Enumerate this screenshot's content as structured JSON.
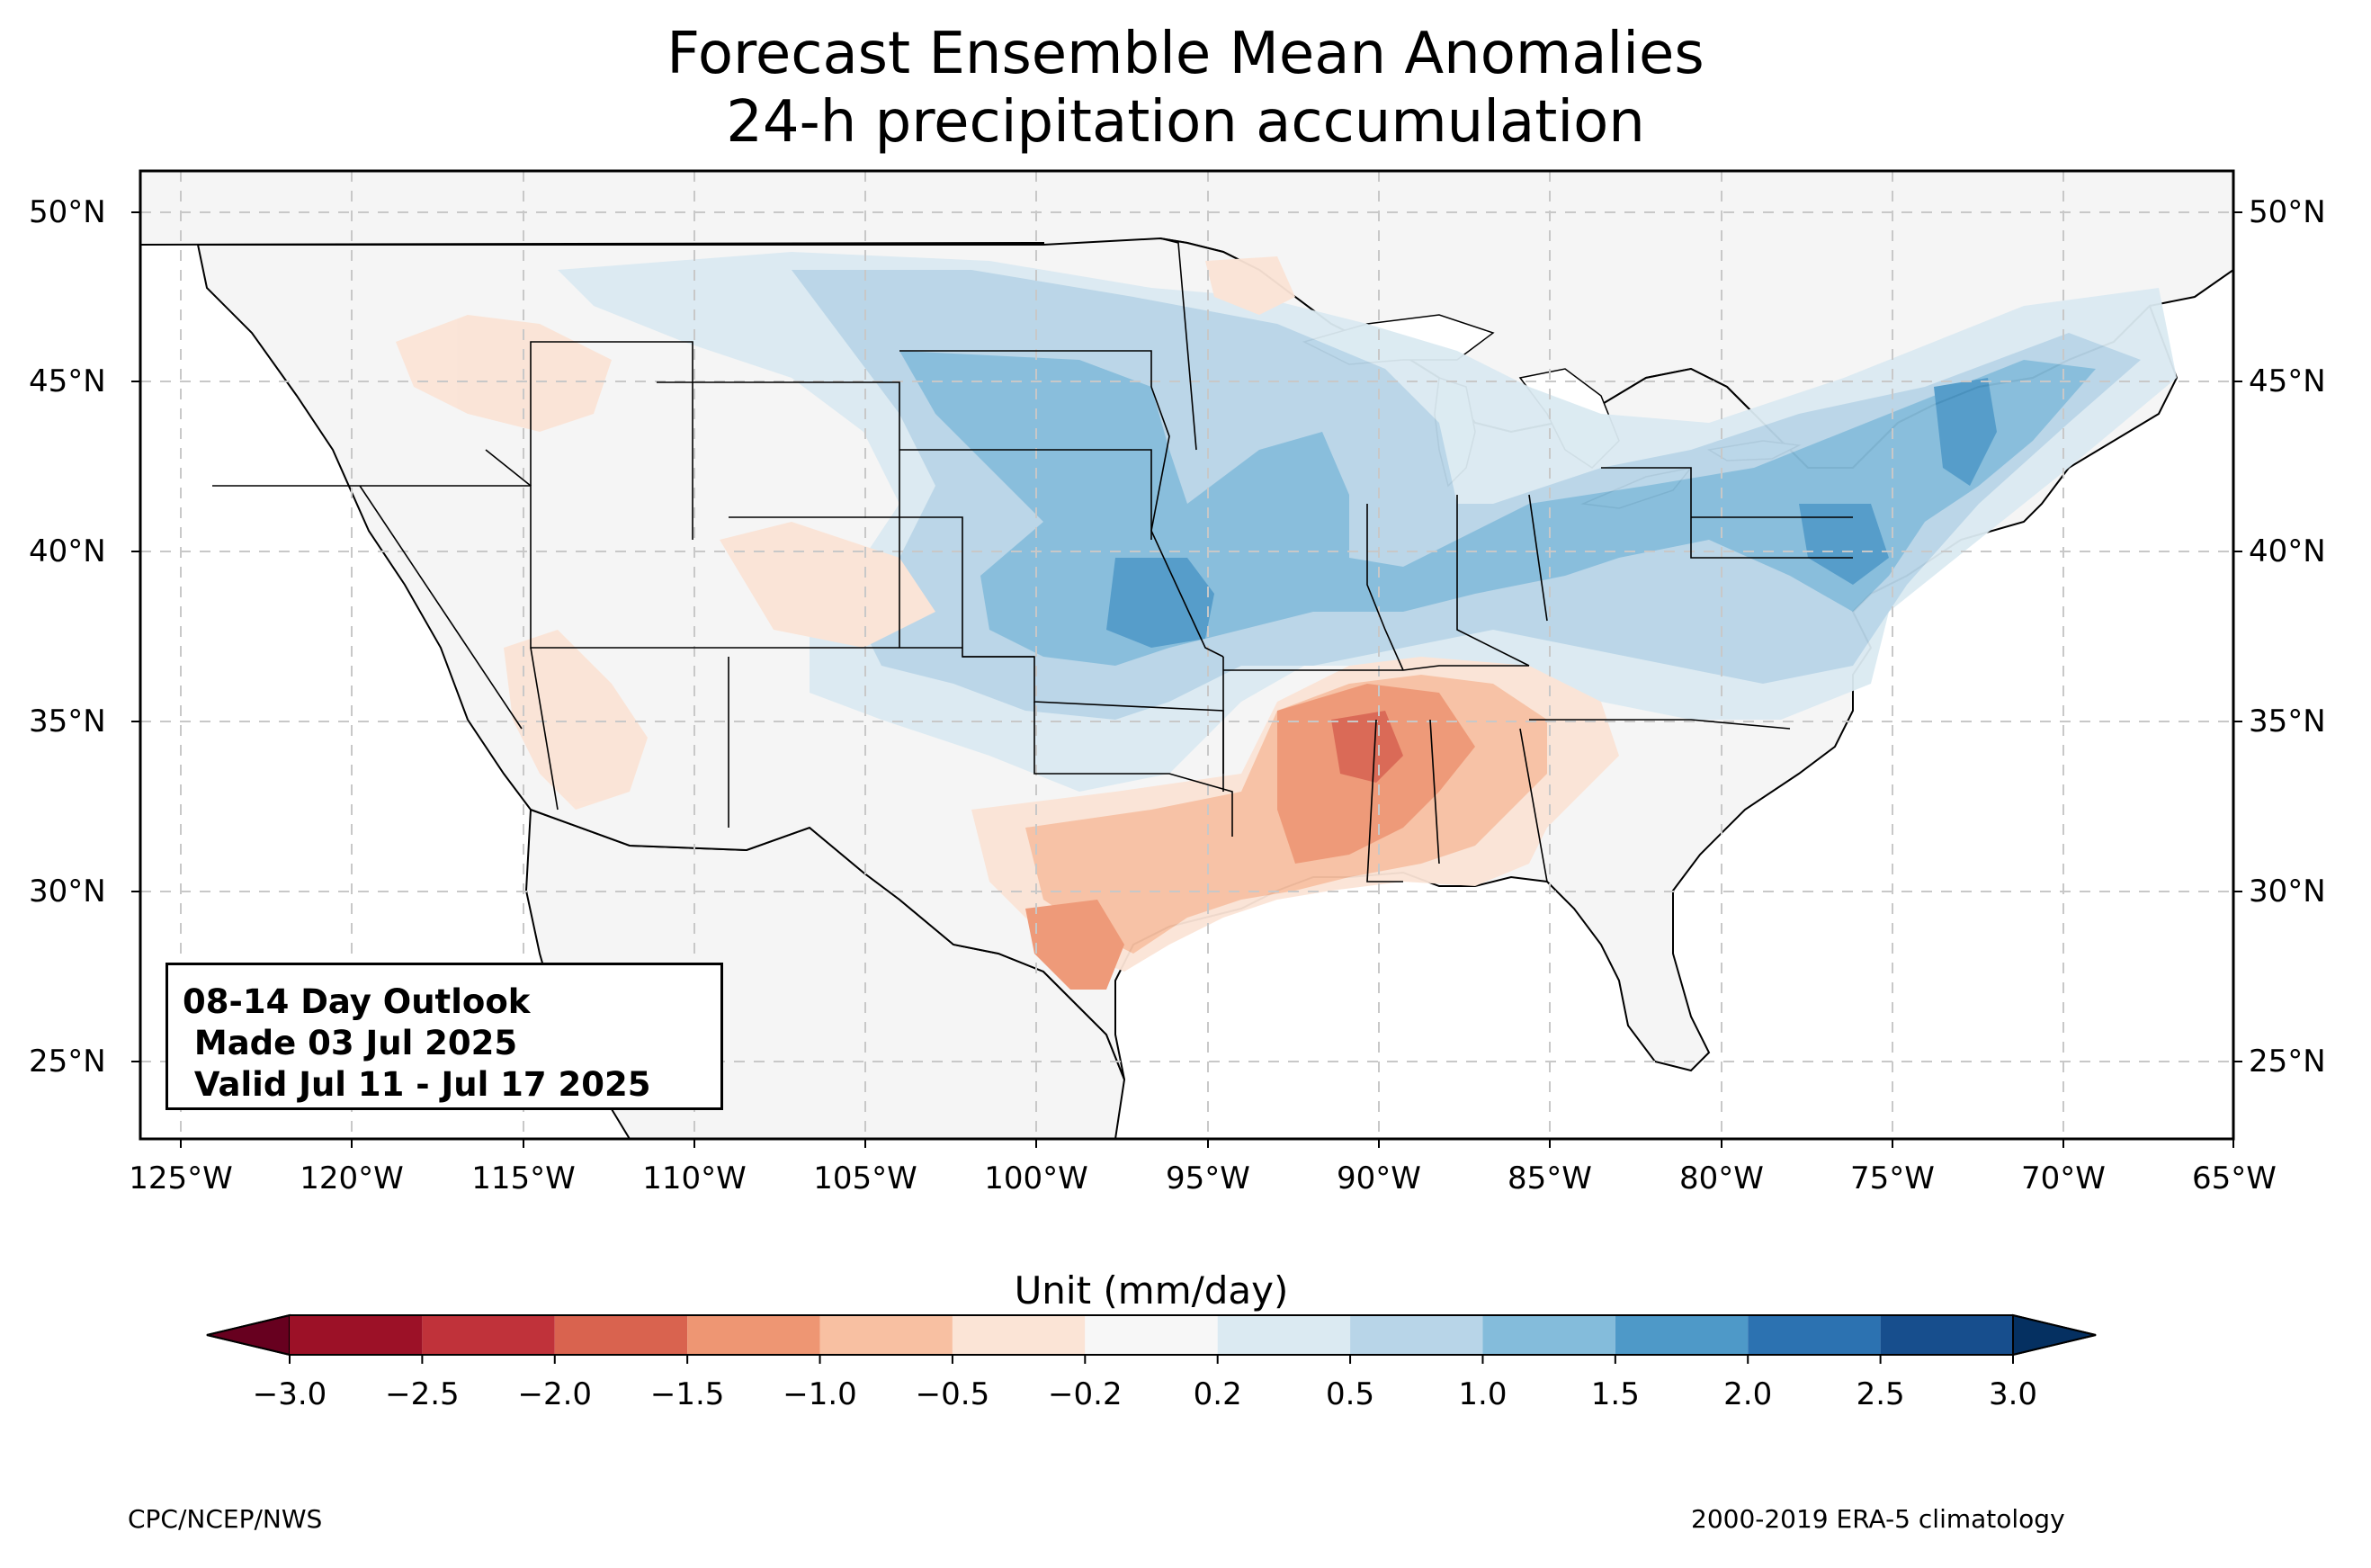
{
  "title": {
    "line1": "Forecast Ensemble Mean Anomalies",
    "line2": "24-h precipitation accumulation"
  },
  "map": {
    "lat_labels": [
      "50°N",
      "45°N",
      "40°N",
      "35°N",
      "30°N",
      "25°N"
    ],
    "lat_values": [
      50,
      45,
      40,
      35,
      30,
      25
    ],
    "lon_labels": [
      "125°W",
      "120°W",
      "115°W",
      "110°W",
      "105°W",
      "100°W",
      "95°W",
      "90°W",
      "85°W",
      "80°W",
      "75°W",
      "70°W",
      "65°W"
    ],
    "lon_values": [
      -125,
      -120,
      -115,
      -110,
      -105,
      -100,
      -95,
      -90,
      -85,
      -80,
      -75,
      -70,
      -65
    ],
    "extent": {
      "lon_min": -126.2,
      "lon_max": -65.1,
      "lat_min": 22.8,
      "lat_max": 51.3
    },
    "land_color": "#f5f5f5",
    "border_color": "#000000",
    "county_color": "#888888",
    "grid_color": "#cccccc"
  },
  "outlook_box": {
    "line1": "08-14 Day Outlook",
    "line2": " Made 03 Jul 2025",
    "line3": " Valid Jul 11 - Jul 17 2025"
  },
  "colorbar": {
    "title": "Unit (mm/day)",
    "ticks": [
      "−3.0",
      "−2.5",
      "−2.0",
      "−1.5",
      "−1.0",
      "−0.5",
      "−0.2",
      "0.2",
      "0.5",
      "1.0",
      "1.5",
      "2.0",
      "2.5",
      "3.0"
    ],
    "colors": [
      "#9c1127",
      "#c0323a",
      "#d9634f",
      "#ee9673",
      "#f8c0a2",
      "#fbe4d6",
      "#f7f7f7",
      "#dbeaf2",
      "#b8d5e8",
      "#84bcdb",
      "#4e99c8",
      "#2c72b1",
      "#174e8d"
    ],
    "under_color": "#67001f",
    "over_color": "#053061"
  },
  "footer": {
    "left": "CPC/NCEP/NWS",
    "right": "2000-2019 ERA-5 climatology"
  }
}
